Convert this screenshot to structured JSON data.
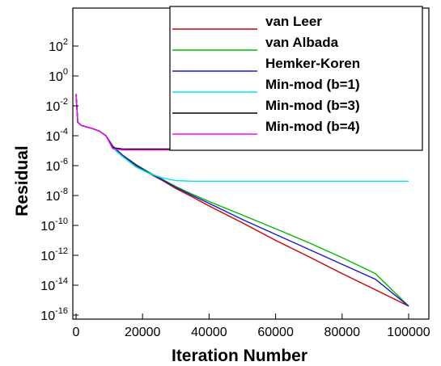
{
  "chart_data": {
    "type": "line",
    "title": "",
    "xlabel": "Iteration Number",
    "ylabel": "Residual",
    "x_ticks": [
      "0",
      "20000",
      "40000",
      "60000",
      "80000",
      "100000"
    ],
    "x_tick_values": [
      0,
      20000,
      40000,
      60000,
      80000,
      100000
    ],
    "xlim": [
      0,
      100000
    ],
    "y_scale": "log",
    "ylim": [
      1e-16,
      100
    ],
    "y_ticks": [
      {
        "base": "10",
        "exp": "2",
        "value": 100
      },
      {
        "base": "10",
        "exp": "0",
        "value": 1
      },
      {
        "base": "10",
        "exp": "-2",
        "value": 0.01
      },
      {
        "base": "10",
        "exp": "-4",
        "value": 0.0001
      },
      {
        "base": "10",
        "exp": "-6",
        "value": 1e-06
      },
      {
        "base": "10",
        "exp": "-8",
        "value": 1e-08
      },
      {
        "base": "10",
        "exp": "-10",
        "value": 1e-10
      },
      {
        "base": "10",
        "exp": "-12",
        "value": 1e-12
      },
      {
        "base": "10",
        "exp": "-14",
        "value": 1e-14
      },
      {
        "base": "10",
        "exp": "-16",
        "value": 1e-16
      }
    ],
    "grid": false,
    "legend_position": "top-right",
    "series": [
      {
        "name": "van Leer",
        "color": "#cc0000",
        "x": [
          0,
          500,
          1500,
          3000,
          5000,
          7000,
          9000,
          11000,
          14000,
          18000,
          22000,
          26000,
          30000,
          35000,
          40000,
          50000,
          60000,
          70000,
          80000,
          90000,
          100000
        ],
        "y": [
          0.06,
          0.0008,
          0.0005,
          0.0004,
          0.0003,
          0.0002,
          0.0001,
          2e-05,
          5e-06,
          1e-06,
          3e-07,
          1e-07,
          3e-08,
          8e-09,
          2e-09,
          1.5e-10,
          1e-11,
          8e-13,
          6e-14,
          5e-15,
          4e-16
        ]
      },
      {
        "name": "van Albada",
        "color": "#00bb00",
        "x": [
          0,
          500,
          1500,
          3000,
          5000,
          7000,
          9000,
          11000,
          14000,
          18000,
          22000,
          26000,
          30000,
          35000,
          40000,
          50000,
          60000,
          70000,
          80000,
          90000,
          100000
        ],
        "y": [
          0.06,
          0.0008,
          0.0005,
          0.0004,
          0.0003,
          0.0002,
          0.0001,
          2e-05,
          5e-06,
          1.2e-06,
          3.5e-07,
          1.2e-07,
          4e-08,
          1.2e-08,
          4e-09,
          5e-10,
          6e-11,
          7e-12,
          7e-13,
          6e-14,
          4e-16
        ]
      },
      {
        "name": "Hemker-Koren",
        "color": "#1a1acc",
        "x": [
          0,
          500,
          1500,
          3000,
          5000,
          7000,
          9000,
          11000,
          14000,
          18000,
          22000,
          26000,
          30000,
          35000,
          40000,
          50000,
          60000,
          70000,
          80000,
          90000,
          100000
        ],
        "y": [
          0.06,
          0.0008,
          0.0005,
          0.0004,
          0.0003,
          0.0002,
          0.0001,
          2e-05,
          5e-06,
          1.1e-06,
          3.2e-07,
          1.1e-07,
          3.5e-08,
          1e-08,
          3e-09,
          2.5e-10,
          2.5e-11,
          2.5e-12,
          2.5e-13,
          2.5e-14,
          4e-16
        ]
      },
      {
        "name": "Min-mod (b=1)",
        "color": "#00e5e5",
        "x": [
          0,
          500,
          1500,
          3000,
          5000,
          7000,
          9000,
          11000,
          14000,
          18000,
          22000,
          26000,
          30000,
          35000,
          40000,
          50000,
          60000,
          70000,
          80000,
          90000,
          100000
        ],
        "y": [
          0.06,
          0.0008,
          0.0005,
          0.0004,
          0.0003,
          0.0002,
          0.0001,
          1.5e-05,
          4e-06,
          8e-07,
          3e-07,
          1.5e-07,
          1e-07,
          9e-08,
          9e-08,
          9e-08,
          9e-08,
          9e-08,
          9e-08,
          9e-08,
          9e-08
        ]
      },
      {
        "name": "Min-mod (b=3)",
        "color": "#000000",
        "x": [
          0,
          500,
          1500,
          3000,
          5000,
          7000,
          9000,
          11000,
          14000,
          18000,
          22000,
          26000,
          30000,
          35000,
          40000,
          50000,
          60000,
          70000,
          80000,
          90000,
          100000
        ],
        "y": [
          0.06,
          0.0008,
          0.0005,
          0.0004,
          0.0003,
          0.0002,
          0.0001,
          1.6e-05,
          1.3e-05,
          1.3e-05,
          1.3e-05,
          1.3e-05,
          1.3e-05,
          1.3e-05,
          1.3e-05,
          1.3e-05,
          1.3e-05,
          1.3e-05,
          1.3e-05,
          1.3e-05,
          1.3e-05
        ]
      },
      {
        "name": "Min-mod (b=4)",
        "color": "#ff00ff",
        "x": [
          0,
          500,
          1500,
          3000,
          5000,
          7000,
          9000,
          11000,
          14000,
          18000,
          22000,
          26000,
          30000,
          35000,
          40000,
          50000,
          60000,
          70000,
          80000,
          90000,
          100000
        ],
        "y": [
          0.06,
          0.0008,
          0.0005,
          0.0004,
          0.0003,
          0.0002,
          0.0001,
          1.4e-05,
          1.1e-05,
          1.1e-05,
          1.1e-05,
          1.1e-05,
          1.1e-05,
          1.1e-05,
          1.1e-05,
          1.1e-05,
          1.1e-05,
          1.1e-05,
          1.1e-05,
          1.1e-05,
          1.1e-05
        ]
      }
    ]
  }
}
